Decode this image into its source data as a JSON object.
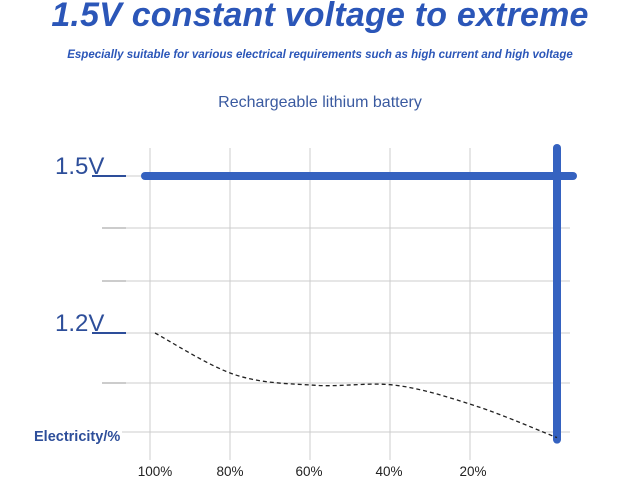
{
  "header": {
    "headline": "1.5V constant voltage to extreme",
    "subline": "Especially suitable for various electrical requirements such as high current and high voltage"
  },
  "colors": {
    "headline": "#2b56b8",
    "subline": "#2b56b8",
    "title": "#3a5aa0",
    "line": "#3562c0",
    "grid": "#cccccc",
    "curve": "#222222",
    "label": "#2d4e9a"
  },
  "chart_data": {
    "type": "line",
    "title": "Rechargeable lithium battery",
    "xlabel": "Electricity/%",
    "ylabel": "",
    "x_ticks": [
      "100%",
      "80%",
      "60%",
      "40%",
      "20%"
    ],
    "x_tick_values": [
      100,
      80,
      60,
      40,
      20
    ],
    "xlim": [
      100,
      0
    ],
    "y_tick_labels": [
      {
        "value": 1.5,
        "label": "1.5V"
      },
      {
        "value": 1.2,
        "label": "1.2V"
      }
    ],
    "ylim": [
      1.0,
      1.6
    ],
    "grid": true,
    "series": [
      {
        "name": "",
        "style": "solid",
        "points": [
          [
            100,
            1.5
          ],
          [
            0,
            1.5
          ],
          [
            0,
            1.0
          ]
        ]
      },
      {
        "name": "",
        "style": "dashed",
        "points": [
          [
            100,
            1.2
          ],
          [
            80,
            1.12
          ],
          [
            60,
            1.1
          ],
          [
            40,
            1.1
          ],
          [
            20,
            1.06
          ],
          [
            0,
            1.0
          ]
        ]
      }
    ]
  }
}
